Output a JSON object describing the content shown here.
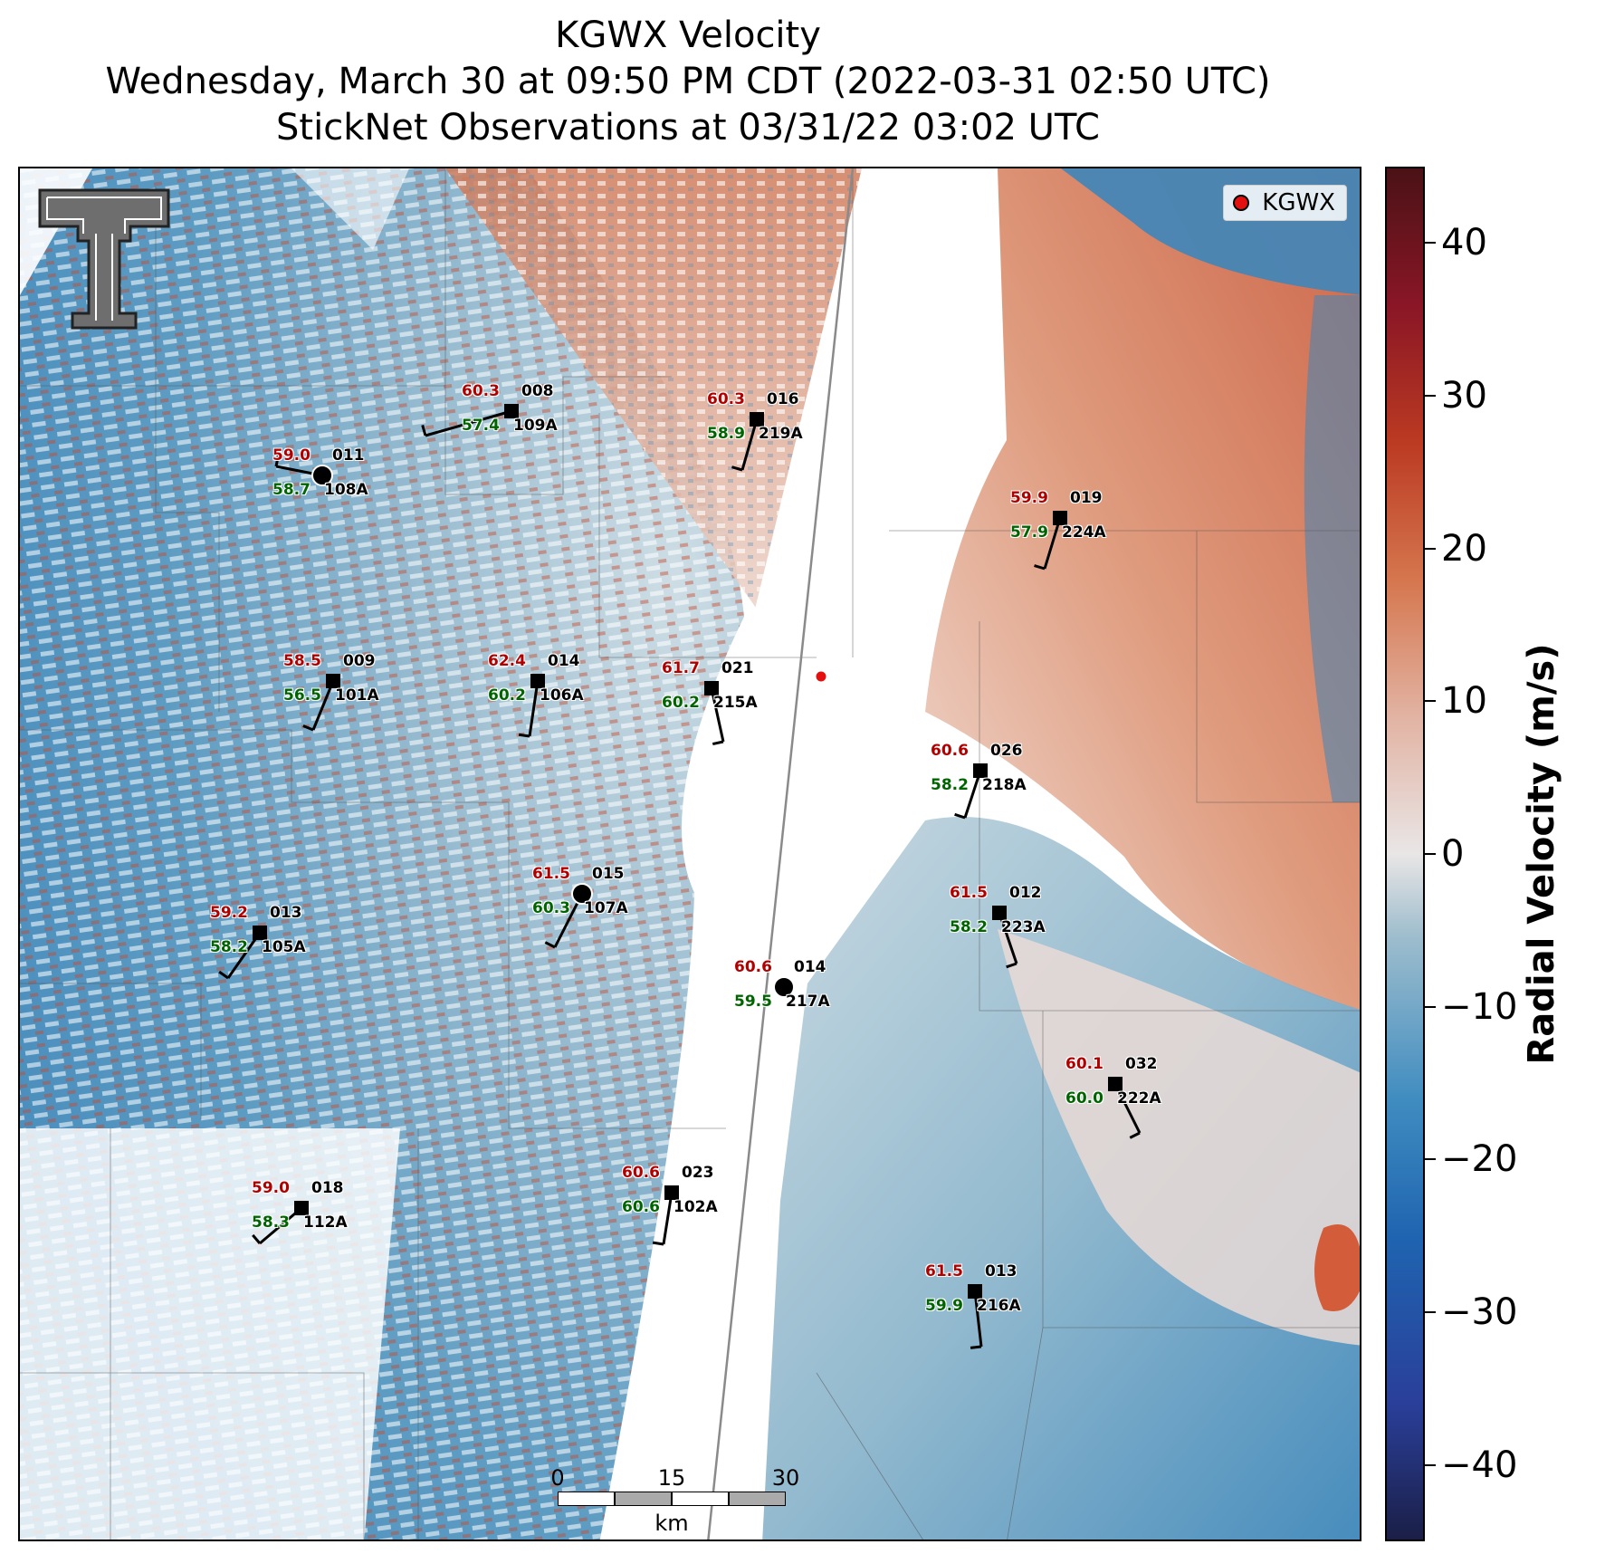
{
  "title": {
    "line1": "KGWX Velocity",
    "line2": "Wednesday, March 30 at 09:50 PM CDT (2022-03-31 02:50 UTC)",
    "line3": "StickNet Observations at 03/31/22 03:02 UTC"
  },
  "legend": {
    "label": "KGWX",
    "marker_color": "#e41010"
  },
  "colorbar": {
    "title": "Radial Velocity (m/s)",
    "range": [
      -45,
      45
    ],
    "ticks": [
      {
        "value": 40,
        "label": "40"
      },
      {
        "value": 30,
        "label": "30"
      },
      {
        "value": 20,
        "label": "20"
      },
      {
        "value": 10,
        "label": "10"
      },
      {
        "value": 0,
        "label": "0"
      },
      {
        "value": -10,
        "label": "−10"
      },
      {
        "value": -20,
        "label": "−20"
      },
      {
        "value": -30,
        "label": "−30"
      },
      {
        "value": -40,
        "label": "−40"
      }
    ]
  },
  "scalebar": {
    "labels": [
      "0",
      "15",
      "30"
    ],
    "unit": "km"
  },
  "radar": {
    "name": "KGWX"
  },
  "stations": [
    {
      "temp": "60.3",
      "dew": "57.4",
      "id": "008",
      "probe": "109A",
      "marker": "square"
    },
    {
      "temp": "60.3",
      "dew": "58.9",
      "id": "016",
      "probe": "219A",
      "marker": "square"
    },
    {
      "temp": "59.0",
      "dew": "58.7",
      "id": "011",
      "probe": "108A",
      "marker": "circle"
    },
    {
      "temp": "59.9",
      "dew": "57.9",
      "id": "019",
      "probe": "224A",
      "marker": "square"
    },
    {
      "temp": "58.5",
      "dew": "56.5",
      "id": "009",
      "probe": "101A",
      "marker": "square"
    },
    {
      "temp": "62.4",
      "dew": "60.2",
      "id": "014",
      "probe": "106A",
      "marker": "square"
    },
    {
      "temp": "61.7",
      "dew": "60.2",
      "id": "021",
      "probe": "215A",
      "marker": "square"
    },
    {
      "temp": "60.6",
      "dew": "58.2",
      "id": "026",
      "probe": "218A",
      "marker": "square"
    },
    {
      "temp": "61.5",
      "dew": "60.3",
      "id": "015",
      "probe": "107A",
      "marker": "circle"
    },
    {
      "temp": "59.2",
      "dew": "58.2",
      "id": "013",
      "probe": "105A",
      "marker": "square"
    },
    {
      "temp": "61.5",
      "dew": "58.2",
      "id": "012",
      "probe": "223A",
      "marker": "square"
    },
    {
      "temp": "60.6",
      "dew": "59.5",
      "id": "014",
      "probe": "217A",
      "marker": "circle"
    },
    {
      "temp": "60.1",
      "dew": "60.0",
      "id": "032",
      "probe": "222A",
      "marker": "square"
    },
    {
      "temp": "60.6",
      "dew": "60.6",
      "id": "023",
      "probe": "102A",
      "marker": "square"
    },
    {
      "temp": "59.0",
      "dew": "58.3",
      "id": "018",
      "probe": "112A",
      "marker": "square"
    },
    {
      "temp": "61.5",
      "dew": "59.9",
      "id": "013",
      "probe": "216A",
      "marker": "square"
    }
  ]
}
